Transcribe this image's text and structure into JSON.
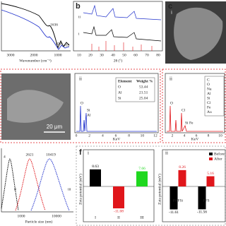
{
  "ftir": {
    "peaks": [
      "1636",
      "824",
      "459"
    ],
    "xticks": [
      "3000",
      "2000",
      "1000"
    ],
    "xlabel": "Wavenumber (cm⁻¹)"
  },
  "xrd": {
    "label": "b",
    "curves": [
      "ii",
      "i"
    ],
    "xticks": [
      "10",
      "20",
      "30",
      "40",
      "50",
      "60",
      "70",
      "80"
    ],
    "xlabel": "2θ (°)"
  },
  "sem_c": {
    "label": "c",
    "sublabel": "i"
  },
  "sem_d": {
    "scale_bar": "20 μm"
  },
  "eds_1": {
    "label": "ii",
    "header": [
      "Element",
      "Weight %"
    ],
    "rows": [
      [
        "O",
        "53.44"
      ],
      [
        "Al",
        "21.51"
      ],
      [
        "Si",
        "25.04"
      ]
    ],
    "peaks": [
      "O",
      "Si",
      "Al"
    ],
    "xticks": [
      "0",
      "2",
      "4",
      "6",
      "8",
      "10",
      "12"
    ],
    "xlabel": "KeV"
  },
  "eds_2": {
    "label": "ii",
    "elements": [
      "C",
      "O",
      "Na",
      "Al",
      "Si",
      "Cl",
      "Fe",
      "Au"
    ],
    "peaks": [
      "O",
      "Cl",
      "Si Fe"
    ],
    "xticks": [
      "2",
      "4",
      "6",
      "8",
      "10"
    ],
    "xlabel": "KeV"
  },
  "size": {
    "peak_labels": [
      "4",
      "2621",
      "10419"
    ],
    "curves": [
      "ii",
      "iii"
    ],
    "xticks": [
      "1000",
      "10000"
    ],
    "xlabel": "Particle size (nm)"
  },
  "zeta": {
    "label": "f",
    "i": {
      "label": "i",
      "ylabel": "Zeta potential (mV)",
      "categories": [
        "I",
        "II",
        "III"
      ],
      "values": [
        8.63,
        -11.08,
        7.66
      ],
      "colors": [
        "#000000",
        "#e0161b",
        "#1fd81f"
      ]
    },
    "ii": {
      "label": "ii",
      "ylabel": "Zata potential (mV)",
      "categories": [
        "PAFSi",
        "PFS"
      ],
      "series": [
        {
          "name": "Before",
          "color": "#000000",
          "values": [
            -11.61,
            -11.56
          ]
        },
        {
          "name": "After",
          "color": "#e0161b",
          "values": [
            8.26,
            5.16
          ]
        }
      ]
    }
  }
}
